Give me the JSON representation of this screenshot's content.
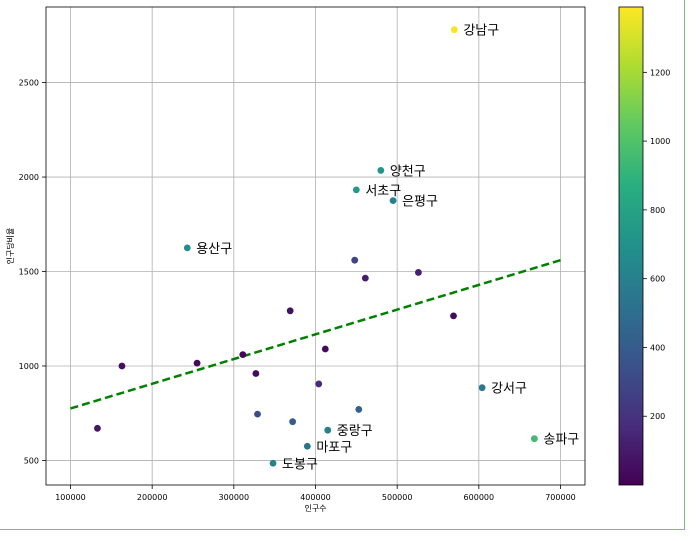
{
  "chart_data": {
    "type": "scatter",
    "title": "",
    "xlabel": "인구수",
    "ylabel": "인구당비율",
    "xlim": [
      70000,
      730000
    ],
    "ylim": [
      370000,
      2900
    ],
    "x_ticks": [
      100000,
      200000,
      300000,
      400000,
      500000,
      600000,
      700000
    ],
    "y_ticks": [
      500,
      1000,
      1500,
      2000,
      2500
    ],
    "grid": true,
    "trend_line": {
      "x": [
        100000,
        700000
      ],
      "y": [
        775,
        1560
      ],
      "color": "#008000",
      "style": "dashed"
    },
    "colorbar": {
      "min": 0,
      "max": 1390,
      "ticks": [
        200,
        400,
        600,
        800,
        1000,
        1200
      ],
      "colormap": "viridis"
    },
    "points": [
      {
        "x": 570000,
        "y": 2780,
        "c": 1380,
        "label": "강남구"
      },
      {
        "x": 480000,
        "y": 2035,
        "c": 720,
        "label": "양천구"
      },
      {
        "x": 450000,
        "y": 1932,
        "c": 730,
        "label": "서초구"
      },
      {
        "x": 495000,
        "y": 1875,
        "c": 600,
        "label": "은평구"
      },
      {
        "x": 243000,
        "y": 1625,
        "c": 680,
        "label": "용산구"
      },
      {
        "x": 604000,
        "y": 885,
        "c": 560,
        "label": "강서구"
      },
      {
        "x": 668000,
        "y": 615,
        "c": 950,
        "label": "송파구"
      },
      {
        "x": 415000,
        "y": 660,
        "c": 600,
        "label": "중랑구"
      },
      {
        "x": 390000,
        "y": 575,
        "c": 530,
        "label": "마포구"
      },
      {
        "x": 348000,
        "y": 485,
        "c": 610,
        "label": "도봉구"
      },
      {
        "x": 448000,
        "y": 1560,
        "c": 280,
        "label": ""
      },
      {
        "x": 461000,
        "y": 1465,
        "c": 110,
        "label": ""
      },
      {
        "x": 526000,
        "y": 1495,
        "c": 120,
        "label": ""
      },
      {
        "x": 569000,
        "y": 1265,
        "c": 40,
        "label": ""
      },
      {
        "x": 369000,
        "y": 1292,
        "c": 60,
        "label": ""
      },
      {
        "x": 412000,
        "y": 1090,
        "c": 30,
        "label": ""
      },
      {
        "x": 311000,
        "y": 1060,
        "c": 20,
        "label": ""
      },
      {
        "x": 163000,
        "y": 1000,
        "c": 50,
        "label": ""
      },
      {
        "x": 255000,
        "y": 1015,
        "c": 25,
        "label": ""
      },
      {
        "x": 327000,
        "y": 960,
        "c": 40,
        "label": ""
      },
      {
        "x": 404000,
        "y": 905,
        "c": 160,
        "label": ""
      },
      {
        "x": 133000,
        "y": 670,
        "c": 80,
        "label": ""
      },
      {
        "x": 329000,
        "y": 745,
        "c": 320,
        "label": ""
      },
      {
        "x": 372000,
        "y": 705,
        "c": 400,
        "label": ""
      },
      {
        "x": 453000,
        "y": 770,
        "c": 430,
        "label": ""
      }
    ]
  }
}
